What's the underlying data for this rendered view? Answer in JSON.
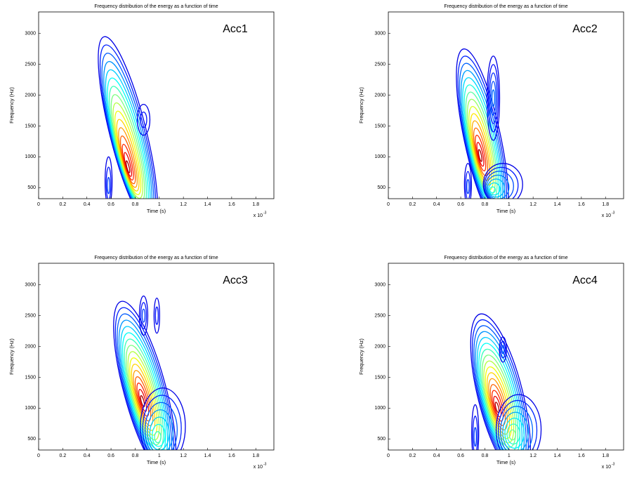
{
  "chart_data": [
    {
      "type": "contour",
      "title": "Frequency distribution of the energy as a function of time",
      "annotation": "Acc1",
      "x_label": "Time (s)",
      "y_label": "Frequency (Hz)",
      "x_scale_label": "x 10",
      "x_scale_exponent": "-3",
      "xlim": [
        0,
        1.95
      ],
      "ylim": [
        320,
        3350
      ],
      "xticks": [
        0,
        0.2,
        0.4,
        0.6,
        0.8,
        1,
        1.2,
        1.4,
        1.6,
        1.8
      ],
      "yticks": [
        500,
        1000,
        1500,
        2000,
        2500,
        3000
      ]
    },
    {
      "type": "contour",
      "title": "Frequency distribution of the energy as a function of time",
      "annotation": "Acc2",
      "x_label": "Time (s)",
      "y_label": "Frequency (Hz)",
      "x_scale_label": "x 10",
      "x_scale_exponent": "-3",
      "xlim": [
        0,
        1.95
      ],
      "ylim": [
        320,
        3350
      ],
      "xticks": [
        0,
        0.2,
        0.4,
        0.6,
        0.8,
        1,
        1.2,
        1.4,
        1.6,
        1.8
      ],
      "yticks": [
        500,
        1000,
        1500,
        2000,
        2500,
        3000
      ]
    },
    {
      "type": "contour",
      "title": "Frequency distribution of the energy as a function of time",
      "annotation": "Acc3",
      "x_label": "Time (s)",
      "y_label": "Frequency (Hz)",
      "x_scale_label": "x 10",
      "x_scale_exponent": "-3",
      "xlim": [
        0,
        1.95
      ],
      "ylim": [
        320,
        3350
      ],
      "xticks": [
        0,
        0.2,
        0.4,
        0.6,
        0.8,
        1,
        1.2,
        1.4,
        1.6,
        1.8
      ],
      "yticks": [
        500,
        1000,
        1500,
        2000,
        2500,
        3000
      ]
    },
    {
      "type": "contour",
      "title": "Frequency distribution of the energy as a function of time",
      "annotation": "Acc4",
      "x_label": "Time (s)",
      "y_label": "Frequency (Hz)",
      "x_scale_label": "x 10",
      "x_scale_exponent": "-3",
      "xlim": [
        0,
        1.95
      ],
      "ylim": [
        320,
        3350
      ],
      "xticks": [
        0,
        0.2,
        0.4,
        0.6,
        0.8,
        1,
        1.2,
        1.4,
        1.6,
        1.8
      ],
      "yticks": [
        500,
        1000,
        1500,
        2000,
        2500,
        3000
      ]
    }
  ]
}
